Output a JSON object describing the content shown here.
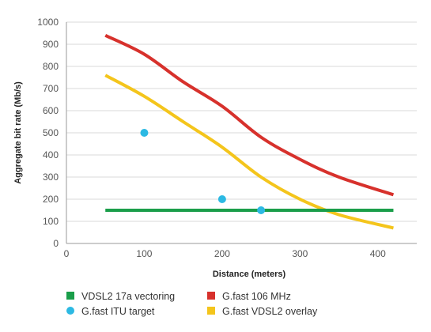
{
  "chart_data": {
    "type": "line",
    "xlabel": "Distance (meters)",
    "ylabel": "Aggregate bit rate (Mb/s)",
    "xlim": [
      0,
      450
    ],
    "ylim": [
      0,
      1000
    ],
    "xticks": [
      0,
      100,
      200,
      300,
      400
    ],
    "yticks": [
      0,
      100,
      200,
      300,
      400,
      500,
      600,
      700,
      800,
      900,
      1000
    ],
    "grid": "horizontal",
    "legend_position": "bottom",
    "series": [
      {
        "name": "VDSL2 17a vectoring",
        "kind": "line",
        "color": "#1a9e4a",
        "x": [
          50,
          420
        ],
        "y": [
          150,
          150
        ]
      },
      {
        "name": "G.fast 106 MHz",
        "kind": "line",
        "color": "#d7312c",
        "x": [
          50,
          100,
          150,
          200,
          250,
          300,
          350,
          420
        ],
        "y": [
          940,
          855,
          730,
          620,
          480,
          380,
          300,
          220
        ]
      },
      {
        "name": "G.fast ITU target",
        "kind": "scatter",
        "color": "#2cb9e3",
        "x": [
          100,
          200,
          250
        ],
        "y": [
          500,
          200,
          150
        ]
      },
      {
        "name": "G.fast VDSL2 overlay",
        "kind": "line",
        "color": "#f4c51c",
        "x": [
          50,
          100,
          150,
          200,
          250,
          300,
          350,
          420
        ],
        "y": [
          760,
          665,
          550,
          435,
          300,
          200,
          130,
          70
        ]
      }
    ]
  }
}
